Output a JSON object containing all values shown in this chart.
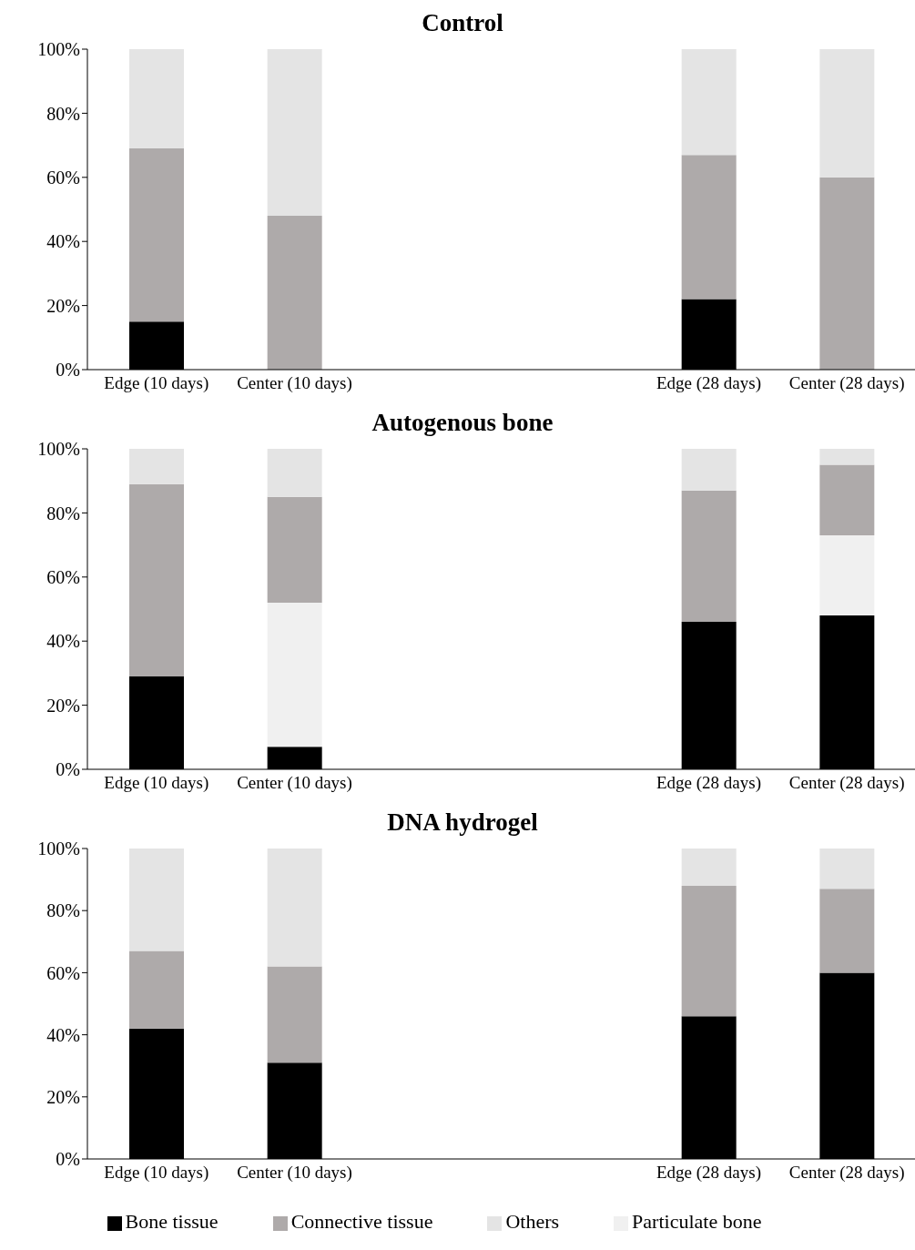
{
  "chart_data": [
    {
      "type": "bar",
      "title": "Control",
      "stacked": true,
      "categories": [
        "Edge (10 days)",
        "Center (10 days)",
        null,
        null,
        "Edge (28 days)",
        "Center (28 days)"
      ],
      "ylim": [
        0,
        100
      ],
      "yticks": [
        {
          "value": 0,
          "label": "0%"
        },
        {
          "value": 20,
          "label": "20%"
        },
        {
          "value": 40,
          "label": "40%"
        },
        {
          "value": 60,
          "label": "60%"
        },
        {
          "value": 80,
          "label": "80%"
        },
        {
          "value": 100,
          "label": "100%"
        }
      ],
      "legend": false,
      "series": [
        {
          "color": "#000000",
          "values": [
            15,
            0,
            null,
            null,
            22,
            0
          ]
        },
        {
          "color": "#f0f0f0",
          "values": [
            0,
            0,
            null,
            null,
            0,
            0
          ]
        },
        {
          "color": "#aeaaaa",
          "values": [
            54,
            48,
            null,
            null,
            45,
            60
          ]
        },
        {
          "color": "#e4e4e4",
          "values": [
            31,
            52,
            null,
            null,
            33,
            40
          ]
        }
      ]
    },
    {
      "type": "bar",
      "title": "Autogenous bone",
      "stacked": true,
      "categories": [
        "Edge (10 days)",
        "Center (10 days)",
        null,
        null,
        "Edge (28 days)",
        "Center (28 days)"
      ],
      "ylim": [
        0,
        100
      ],
      "yticks": [
        {
          "value": 0,
          "label": "0%"
        },
        {
          "value": 20,
          "label": "20%"
        },
        {
          "value": 40,
          "label": "40%"
        },
        {
          "value": 60,
          "label": "60%"
        },
        {
          "value": 80,
          "label": "80%"
        },
        {
          "value": 100,
          "label": "100%"
        }
      ],
      "legend": false,
      "series": [
        {
          "color": "#000000",
          "values": [
            29,
            7,
            null,
            null,
            46,
            48
          ]
        },
        {
          "color": "#f0f0f0",
          "values": [
            0,
            45,
            null,
            null,
            0,
            25
          ]
        },
        {
          "color": "#aeaaaa",
          "values": [
            60,
            33,
            null,
            null,
            41,
            22
          ]
        },
        {
          "color": "#e4e4e4",
          "values": [
            11,
            15,
            null,
            null,
            13,
            5
          ]
        }
      ]
    },
    {
      "type": "bar",
      "title": "DNA hydrogel",
      "stacked": true,
      "categories": [
        "Edge (10 days)",
        "Center (10 days)",
        null,
        null,
        "Edge (28 days)",
        "Center (28 days)"
      ],
      "ylim": [
        0,
        100
      ],
      "yticks": [
        {
          "value": 0,
          "label": "0%"
        },
        {
          "value": 20,
          "label": "20%"
        },
        {
          "value": 40,
          "label": "40%"
        },
        {
          "value": 60,
          "label": "60%"
        },
        {
          "value": 80,
          "label": "80%"
        },
        {
          "value": 100,
          "label": "100%"
        }
      ],
      "legend": "bottom",
      "series": [
        {
          "name": "Bone tissue",
          "color": "#000000",
          "values": [
            42,
            31,
            null,
            null,
            46,
            60
          ]
        },
        {
          "name": "Particulate bone",
          "color": "#f0f0f0",
          "values": [
            0,
            0,
            null,
            null,
            0,
            0
          ]
        },
        {
          "name": "Connective tissue",
          "color": "#aeaaaa",
          "values": [
            25,
            31,
            null,
            null,
            42,
            27
          ]
        },
        {
          "name": "Others",
          "color": "#e4e4e4",
          "values": [
            33,
            38,
            null,
            null,
            12,
            13
          ]
        }
      ]
    }
  ]
}
